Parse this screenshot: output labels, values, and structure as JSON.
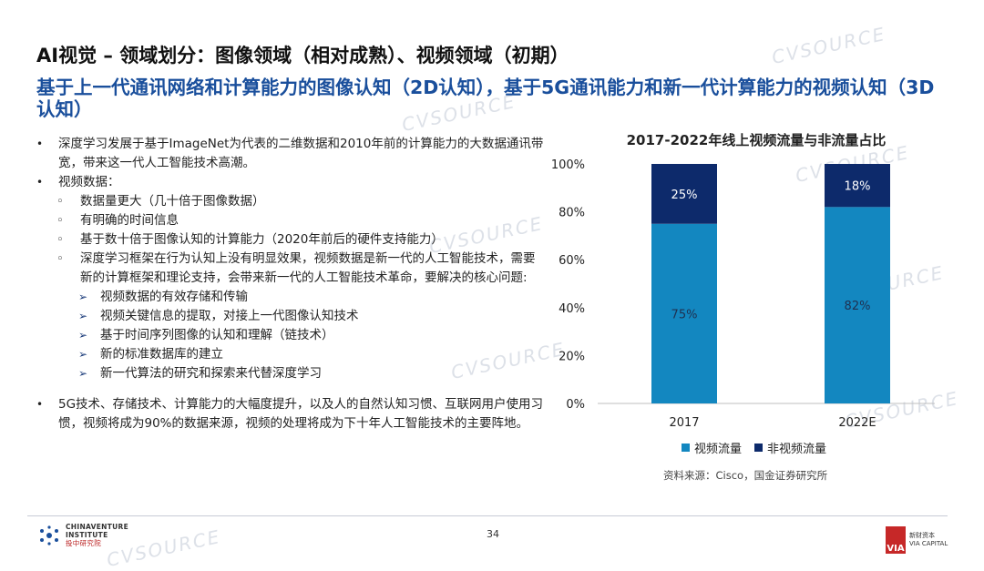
{
  "slide": {
    "title": "AI视觉 – 领域划分：图像领域（相对成熟）、视频领域（初期）",
    "subtitle": "基于上一代通讯网络和计算能力的图像认知（2D认知），基于5G通讯能力和新一代计算能力的视频认知（3D认知）",
    "page_number": "34"
  },
  "body": {
    "b1": "深度学习发展于基于ImageNet为代表的二维数据和2010年前的计算能力的大数据通讯带宽，带来这一代人工智能技术高潮。",
    "b2": "视频数据：",
    "b2_sub": [
      "数据量更大（几十倍于图像数据）",
      "有明确的时间信息",
      "基于数十倍于图像认知的计算能力（2020年前后的硬件支持能力）",
      "深度学习框架在行为认知上没有明显效果，视频数据是新一代的人工智能技术，需要新的计算框架和理论支持，会带来新一代的人工智能技术革命，要解决的核心问题:"
    ],
    "b2_arrows": [
      "视频数据的有效存储和传输",
      "视频关键信息的提取，对接上一代图像认知技术",
      "基于时间序列图像的认知和理解（链技术）",
      "新的标准数据库的建立",
      "新一代算法的研究和探索来代替深度学习"
    ],
    "b3": "5G技术、存储技术、计算能力的大幅度提升，以及人的自然认知习惯、互联网用户使用习惯，视频将成为90%的数据来源，视频的处理将成为下十年人工智能技术的主要阵地。"
  },
  "chart_data": {
    "type": "bar",
    "stacked": true,
    "title": "2017-2022年线上视频流量与非流量占比",
    "categories": [
      "2017",
      "2022E"
    ],
    "series": [
      {
        "name": "视频流量",
        "values": [
          75,
          82
        ],
        "labels": [
          "75%",
          "82%"
        ],
        "color": "#1387c0"
      },
      {
        "name": "非视频流量",
        "values": [
          25,
          18
        ],
        "labels": [
          "25%",
          "18%"
        ],
        "color": "#0d2a6b"
      }
    ],
    "ylim": [
      0,
      100
    ],
    "yticks": [
      "0%",
      "20%",
      "40%",
      "60%",
      "80%",
      "100%"
    ],
    "grid": false,
    "legend": "bottom",
    "source": "资料来源：Cisco，国金证券研究所"
  },
  "footer": {
    "logo_line1": "CHINAVENTURE",
    "logo_line2": "INSTITUTE",
    "logo_line3": "投中研究院",
    "via_mark": "VIA",
    "via_line1": "新财资本",
    "via_line2": "VIA CAPITAL"
  },
  "watermark": "CVSOURCE"
}
